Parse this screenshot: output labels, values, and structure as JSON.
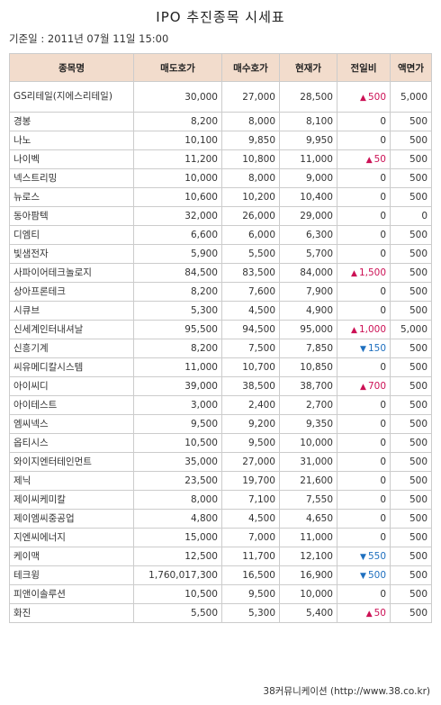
{
  "title": "IPO 추진종목 시세표",
  "base_date": "기준일 : 2011년 07월 11일 15:00",
  "headers": [
    "종목명",
    "매도호가",
    "매수호가",
    "현재가",
    "전일비",
    "액면가"
  ],
  "colors": {
    "header_bg": "#f2dccc",
    "up": "#cc1155",
    "down": "#1e6fbf"
  },
  "rows": [
    {
      "name": "GS리테일(지에스리테일)",
      "ask": "30,000",
      "bid": "27,000",
      "price": "28,500",
      "change": "500",
      "dir": "up",
      "par": "5,000"
    },
    {
      "name": "경봉",
      "ask": "8,200",
      "bid": "8,000",
      "price": "8,100",
      "change": "0",
      "dir": "none",
      "par": "500"
    },
    {
      "name": "나노",
      "ask": "10,100",
      "bid": "9,850",
      "price": "9,950",
      "change": "0",
      "dir": "none",
      "par": "500"
    },
    {
      "name": "나이벡",
      "ask": "11,200",
      "bid": "10,800",
      "price": "11,000",
      "change": "50",
      "dir": "up",
      "par": "500"
    },
    {
      "name": "넥스트리밍",
      "ask": "10,000",
      "bid": "8,000",
      "price": "9,000",
      "change": "0",
      "dir": "none",
      "par": "500"
    },
    {
      "name": "뉴로스",
      "ask": "10,600",
      "bid": "10,200",
      "price": "10,400",
      "change": "0",
      "dir": "none",
      "par": "500"
    },
    {
      "name": "동아팜텍",
      "ask": "32,000",
      "bid": "26,000",
      "price": "29,000",
      "change": "0",
      "dir": "none",
      "par": "0"
    },
    {
      "name": "디엠티",
      "ask": "6,600",
      "bid": "6,000",
      "price": "6,300",
      "change": "0",
      "dir": "none",
      "par": "500"
    },
    {
      "name": "빛샘전자",
      "ask": "5,900",
      "bid": "5,500",
      "price": "5,700",
      "change": "0",
      "dir": "none",
      "par": "500"
    },
    {
      "name": "사파이어테크놀로지",
      "ask": "84,500",
      "bid": "83,500",
      "price": "84,000",
      "change": "1,500",
      "dir": "up",
      "par": "500"
    },
    {
      "name": "상아프론테크",
      "ask": "8,200",
      "bid": "7,600",
      "price": "7,900",
      "change": "0",
      "dir": "none",
      "par": "500"
    },
    {
      "name": "시큐브",
      "ask": "5,300",
      "bid": "4,500",
      "price": "4,900",
      "change": "0",
      "dir": "none",
      "par": "500"
    },
    {
      "name": "신세계인터내셔날",
      "ask": "95,500",
      "bid": "94,500",
      "price": "95,000",
      "change": "1,000",
      "dir": "up",
      "par": "5,000"
    },
    {
      "name": "신흥기계",
      "ask": "8,200",
      "bid": "7,500",
      "price": "7,850",
      "change": "150",
      "dir": "down",
      "par": "500"
    },
    {
      "name": "씨유메디칼시스템",
      "ask": "11,000",
      "bid": "10,700",
      "price": "10,850",
      "change": "0",
      "dir": "none",
      "par": "500"
    },
    {
      "name": "아이씨디",
      "ask": "39,000",
      "bid": "38,500",
      "price": "38,700",
      "change": "700",
      "dir": "up",
      "par": "500"
    },
    {
      "name": "아이테스트",
      "ask": "3,000",
      "bid": "2,400",
      "price": "2,700",
      "change": "0",
      "dir": "none",
      "par": "500"
    },
    {
      "name": "엠씨넥스",
      "ask": "9,500",
      "bid": "9,200",
      "price": "9,350",
      "change": "0",
      "dir": "none",
      "par": "500"
    },
    {
      "name": "옵티시스",
      "ask": "10,500",
      "bid": "9,500",
      "price": "10,000",
      "change": "0",
      "dir": "none",
      "par": "500"
    },
    {
      "name": "와이지엔터테인먼트",
      "ask": "35,000",
      "bid": "27,000",
      "price": "31,000",
      "change": "0",
      "dir": "none",
      "par": "500"
    },
    {
      "name": "제닉",
      "ask": "23,500",
      "bid": "19,700",
      "price": "21,600",
      "change": "0",
      "dir": "none",
      "par": "500"
    },
    {
      "name": "제이씨케미칼",
      "ask": "8,000",
      "bid": "7,100",
      "price": "7,550",
      "change": "0",
      "dir": "none",
      "par": "500"
    },
    {
      "name": "제이엠씨중공업",
      "ask": "4,800",
      "bid": "4,500",
      "price": "4,650",
      "change": "0",
      "dir": "none",
      "par": "500"
    },
    {
      "name": "지엔씨에너지",
      "ask": "15,000",
      "bid": "7,000",
      "price": "11,000",
      "change": "0",
      "dir": "none",
      "par": "500"
    },
    {
      "name": "케이맥",
      "ask": "12,500",
      "bid": "11,700",
      "price": "12,100",
      "change": "550",
      "dir": "down",
      "par": "500"
    },
    {
      "name": "테크윙",
      "ask": "1,760,017,300",
      "bid": "16,500",
      "price": "16,900",
      "change": "500",
      "dir": "down",
      "par": "500"
    },
    {
      "name": "피앤이솔루션",
      "ask": "10,500",
      "bid": "9,500",
      "price": "10,000",
      "change": "0",
      "dir": "none",
      "par": "500"
    },
    {
      "name": "화진",
      "ask": "5,500",
      "bid": "5,300",
      "price": "5,400",
      "change": "50",
      "dir": "up",
      "par": "500"
    }
  ],
  "source": "38커뮤니케이션 (http://www.38.co.kr)"
}
